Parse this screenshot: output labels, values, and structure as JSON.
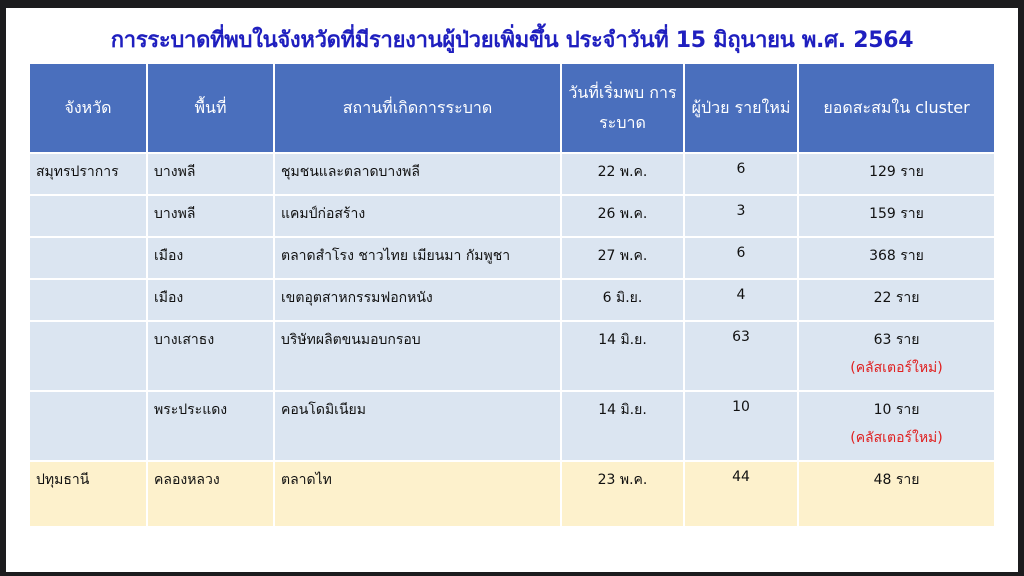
{
  "title": "การระบาดที่พบในจังหวัดที่มีรายงานผู้ป่วยเพิ่มขึ้น ประจำวันที่ 15 มิถุนายน พ.ศ. 2564",
  "headers": [
    "จังหวัด",
    "พื้นที่",
    "สถานที่เกิดการระบาด",
    "วันที่เริ่มพบ การระบาด",
    "ผู้ป่วย รายใหม่",
    "ยอดสะสมใน cluster"
  ],
  "rows": [
    {
      "province": "สมุทรปราการ",
      "area": "บางพลี",
      "place": "ชุมชนและตลาดบางพลี",
      "date": "22 พ.ค.",
      "new": "6",
      "total": "129 ราย",
      "note": ""
    },
    {
      "province": "",
      "area": "บางพลี",
      "place": "แคมป์ก่อสร้าง",
      "date": "26 พ.ค.",
      "new": "3",
      "total": "159 ราย",
      "note": ""
    },
    {
      "province": "",
      "area": "เมือง",
      "place": "ตลาดสำโรง ชาวไทย เมียนมา กัมพูชา",
      "date": "27  พ.ค.",
      "new": "6",
      "total": "368  ราย",
      "note": ""
    },
    {
      "province": "",
      "area": "เมือง",
      "place": "เขตอุตสาหกรรมฟอกหนัง",
      "date": "6 มิ.ย.",
      "new": "4",
      "total": "22 ราย",
      "note": ""
    },
    {
      "province": "",
      "area": "บางเสาธง",
      "place": "บริษัทผลิตขนมอบกรอบ",
      "date": "14 มิ.ย.",
      "new": "63",
      "total": "63 ราย",
      "note": "(คลัสเตอร์ใหม่)"
    },
    {
      "province": "",
      "area": "พระประแดง",
      "place": "คอนโดมิเนียม",
      "date": "14 มิ.ย.",
      "new": "10",
      "total": "10 ราย",
      "note": "(คลัสเตอร์ใหม่)"
    },
    {
      "province": "ปทุมธานี",
      "area": "คลองหลวง",
      "place": "ตลาดไท",
      "date": "23 พ.ค.",
      "new": "44",
      "total": "48 ราย",
      "note": ""
    }
  ],
  "colors": {
    "title": "#1f1fbf",
    "header": "#4a6fbd",
    "row_blue": "#dbe5f1",
    "row_yellow": "#fdf1cc",
    "note": "#e02020"
  }
}
